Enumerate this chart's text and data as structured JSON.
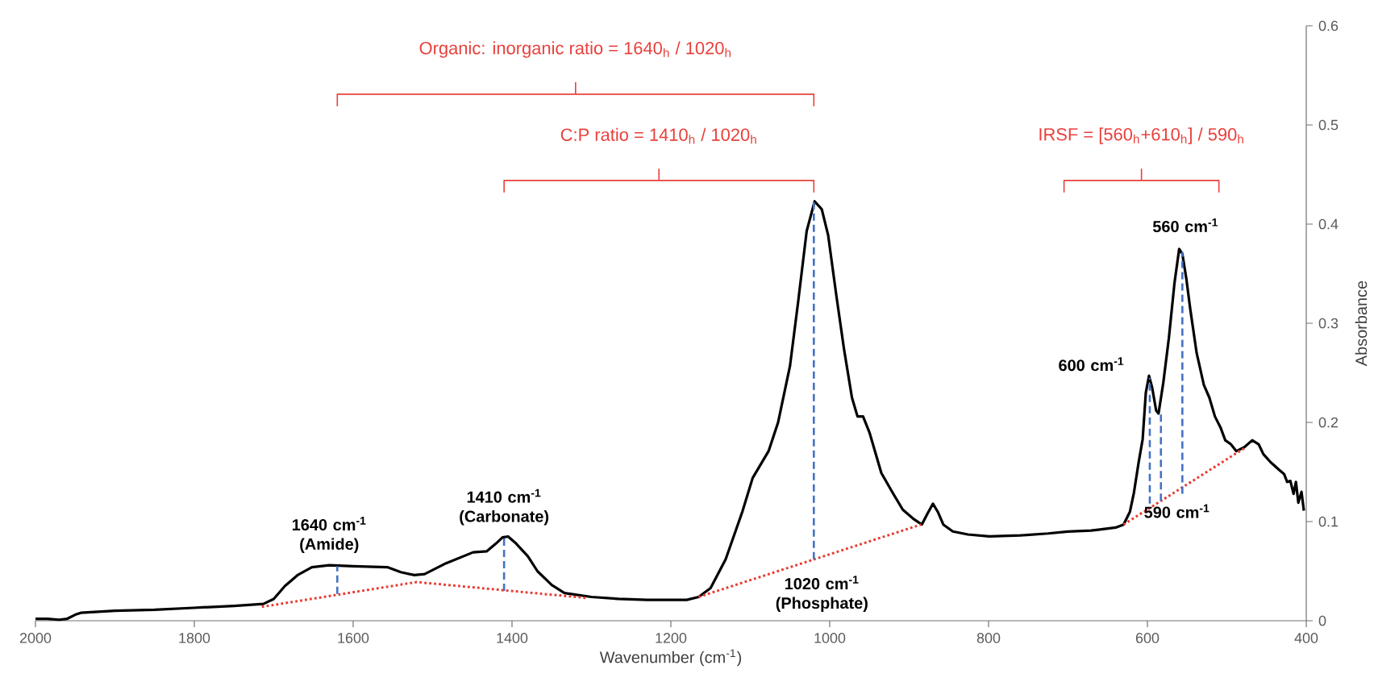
{
  "chart_data": {
    "type": "line",
    "xlabel": "Wavenumber (cm$^{-1}$)",
    "ylabel": "Absorbance",
    "xlim": [
      2000,
      400
    ],
    "ylim": [
      0,
      0.6
    ],
    "xticks": [
      2000,
      1800,
      1600,
      1400,
      1200,
      1000,
      800,
      600,
      400
    ],
    "yticks": [
      0,
      0.1,
      0.2,
      0.3,
      0.4,
      0.5,
      0.6
    ],
    "series": [
      {
        "color": "#000000",
        "line_style": "solid",
        "x": [
          2000,
          1985,
          1970,
          1960,
          1950,
          1943,
          1900,
          1850,
          1801,
          1750,
          1713,
          1700,
          1686,
          1670,
          1652,
          1630,
          1600,
          1557,
          1540,
          1523,
          1510,
          1483,
          1449,
          1432,
          1420,
          1412,
          1405,
          1395,
          1380,
          1368,
          1350,
          1334,
          1300,
          1266,
          1230,
          1200,
          1180,
          1165,
          1150,
          1131,
          1110,
          1097,
          1077,
          1065,
          1050,
          1040,
          1029,
          1019,
          1010,
          1002,
          992,
          982,
          972,
          965,
          958,
          950,
          935,
          920,
          908,
          895,
          884,
          877,
          870,
          864,
          857,
          845,
          826,
          799,
          760,
          725,
          700,
          671,
          660,
          640,
          630,
          622,
          617,
          611,
          606,
          602,
          598,
          594,
          589,
          586,
          580,
          573,
          566,
          560,
          556,
          551,
          546,
          538,
          529,
          522,
          515,
          508,
          502,
          495,
          488,
          478,
          468,
          460,
          454,
          445,
          434,
          428,
          424,
          420,
          416,
          413,
          410,
          406,
          403
        ],
        "values": [
          0.002,
          0.002,
          0.001,
          0.002,
          0.006,
          0.008,
          0.01,
          0.011,
          0.013,
          0.015,
          0.017,
          0.022,
          0.035,
          0.046,
          0.054,
          0.056,
          0.055,
          0.054,
          0.049,
          0.046,
          0.047,
          0.058,
          0.069,
          0.07,
          0.078,
          0.084,
          0.085,
          0.078,
          0.065,
          0.05,
          0.036,
          0.028,
          0.024,
          0.022,
          0.021,
          0.021,
          0.021,
          0.024,
          0.033,
          0.062,
          0.11,
          0.144,
          0.171,
          0.2,
          0.257,
          0.32,
          0.393,
          0.423,
          0.415,
          0.389,
          0.33,
          0.274,
          0.225,
          0.206,
          0.206,
          0.19,
          0.149,
          0.128,
          0.112,
          0.103,
          0.097,
          0.108,
          0.118,
          0.11,
          0.097,
          0.09,
          0.087,
          0.085,
          0.086,
          0.088,
          0.09,
          0.091,
          0.092,
          0.094,
          0.097,
          0.11,
          0.129,
          0.16,
          0.183,
          0.23,
          0.247,
          0.235,
          0.212,
          0.209,
          0.24,
          0.285,
          0.34,
          0.375,
          0.37,
          0.345,
          0.314,
          0.27,
          0.238,
          0.225,
          0.206,
          0.195,
          0.182,
          0.178,
          0.171,
          0.175,
          0.182,
          0.178,
          0.168,
          0.16,
          0.152,
          0.148,
          0.14,
          0.141,
          0.128,
          0.14,
          0.119,
          0.13,
          0.111
        ]
      },
      {
        "color": "#e83a30",
        "line_style": "dotted",
        "x": [
          1715,
          1520,
          1307,
          1240,
          1165,
          885,
          700,
          630,
          478
        ],
        "values": [
          0.014,
          0.039,
          0.023,
          null,
          0.024,
          0.097,
          null,
          0.097,
          0.174
        ]
      },
      {
        "color": "#4472c4",
        "line_style": "dashed",
        "x": [
          1620,
          1620,
          1500,
          1410,
          1410,
          1200,
          1020,
          1020,
          800,
          597,
          597,
          590,
          583,
          583,
          570,
          556,
          556
        ],
        "values": [
          0.027,
          0.055,
          null,
          0.03,
          0.083,
          null,
          0.062,
          0.423,
          null,
          0.118,
          0.245,
          null,
          0.121,
          0.21,
          null,
          0.128,
          0.372
        ]
      }
    ],
    "annotations": [
      {
        "text": "1640 cm$^{-1}$ (Amide)",
        "x": 1620,
        "y": 0.055
      },
      {
        "text": "1410 cm$^{-1}$ (Carbonate)",
        "x": 1410,
        "y": 0.083
      },
      {
        "text": "1020 cm$^{-1}$ (Phosphate)",
        "x": 1020,
        "y": 0.062
      },
      {
        "text": "600 cm$^{-1}$",
        "x": 597,
        "y": 0.245
      },
      {
        "text": "560 cm$^{-1}$",
        "x": 556,
        "y": 0.372
      },
      {
        "text": "590 cm$^{-1}$",
        "x": 583,
        "y": 0.121
      },
      "Organic: inorganic ratio = 1640$_{h}$ / 1020$_{h}$",
      "C:P ratio = 1410$_{h}$ / 1020$_{h}$",
      "IRSF = [560$_{h}$+610$_{h}$] / 590$_{h}$"
    ]
  }
}
